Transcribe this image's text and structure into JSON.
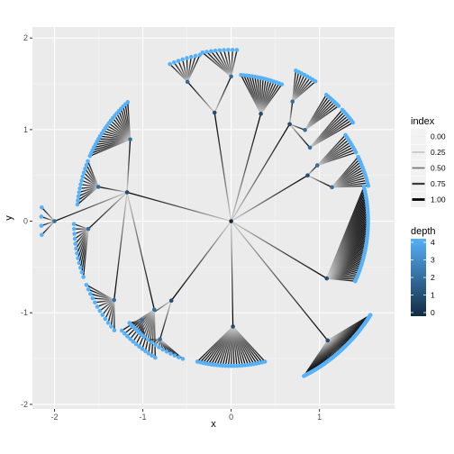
{
  "chart_data": {
    "type": "dendrogram",
    "xlabel": "x",
    "ylabel": "y",
    "xlim": [
      -2.25,
      1.85
    ],
    "ylim": [
      -2.05,
      2.12
    ],
    "x_ticks": [
      -2,
      -1,
      0,
      1
    ],
    "x_tick_labels": [
      "-2",
      "-1",
      "0",
      "1"
    ],
    "y_ticks": [
      -2,
      -1,
      0,
      1,
      2
    ],
    "y_tick_labels": [
      "-2",
      "-1",
      "0",
      "1",
      "2"
    ],
    "grid": true,
    "legend_position": "right",
    "legends": {
      "index": {
        "title": "index",
        "labels": [
          "0.00",
          "0.25",
          "0.50",
          "0.75",
          "1.00"
        ],
        "values": [
          0.0,
          0.25,
          0.5,
          0.75,
          1.0
        ]
      },
      "depth": {
        "title": "depth",
        "labels": [
          "4",
          "3",
          "2",
          "1",
          "0"
        ],
        "values": [
          4,
          3,
          2,
          1,
          0
        ],
        "low_color": "#132b43",
        "high_color": "#56b1f7"
      }
    },
    "root": {
      "x": 0,
      "y": 0,
      "depth": 0
    },
    "branches": [
      {
        "angle_deg": 99,
        "radius": 1.2,
        "depth": 1,
        "children": [
          {
            "angle_deg": 108,
            "radius": 1.6,
            "depth": 2,
            "leaves": {
              "start_deg": 101,
              "end_deg": 112,
              "count": 8,
              "radius": 1.85,
              "depth": 4
            }
          },
          {
            "angle_deg": 90,
            "radius": 1.58,
            "depth": 2,
            "leaves": {
              "start_deg": 88,
              "end_deg": 100,
              "count": 9,
              "radius": 1.87,
              "depth": 4
            }
          }
        ]
      },
      {
        "angle_deg": 74,
        "radius": 1.22,
        "depth": 1,
        "leaves": {
          "start_deg": 69,
          "end_deg": 86,
          "count": 16,
          "radius": 1.6,
          "depth": 4
        }
      },
      {
        "angle_deg": 58,
        "radius": 1.25,
        "depth": 1,
        "children": [
          {
            "angle_deg": 62,
            "radius": 1.48,
            "depth": 2,
            "leaves": {
              "start_deg": 58,
              "end_deg": 66,
              "count": 8,
              "radius": 1.8,
              "depth": 4
            }
          },
          {
            "angle_deg": 50,
            "radius": 1.3,
            "depth": 2,
            "leaves": {
              "start_deg": 46,
              "end_deg": 52,
              "count": 7,
              "radius": 1.75,
              "depth": 4
            }
          },
          {
            "angle_deg": 42,
            "radius": 1.2,
            "depth": 2,
            "leaves": {
              "start_deg": 38,
              "end_deg": 44,
              "count": 7,
              "radius": 1.75,
              "depth": 4
            }
          }
        ]
      },
      {
        "angle_deg": 30,
        "radius": 1.0,
        "depth": 1,
        "children": [
          {
            "angle_deg": 32,
            "radius": 1.15,
            "depth": 2,
            "leaves": {
              "start_deg": 28,
              "end_deg": 36,
              "count": 8,
              "radius": 1.6,
              "depth": 4
            }
          },
          {
            "angle_deg": 18,
            "radius": 1.2,
            "depth": 2,
            "leaves": {
              "start_deg": 14,
              "end_deg": 26,
              "count": 12,
              "radius": 1.6,
              "depth": 4
            }
          }
        ]
      },
      {
        "angle_deg": -30,
        "radius": 1.25,
        "depth": 1,
        "leaves": {
          "start_deg": -25,
          "end_deg": 14,
          "count": 40,
          "radius": 1.55,
          "depth": 4
        }
      },
      {
        "angle_deg": -50,
        "radius": 1.7,
        "depth": 1,
        "leaves": {
          "start_deg": -64,
          "end_deg": -33,
          "count": 55,
          "radius": 1.88,
          "depth": 4
        }
      },
      {
        "angle_deg": -89,
        "radius": 1.15,
        "depth": 1,
        "leaves": {
          "start_deg": -104,
          "end_deg": -76,
          "count": 25,
          "radius": 1.58,
          "depth": 4
        }
      },
      {
        "angle_deg": -128,
        "radius": 1.1,
        "depth": 1,
        "children": [
          {
            "angle_deg": -122,
            "radius": 1.52,
            "depth": 2,
            "leaves": {
              "start_deg": -126,
              "end_deg": -110,
              "count": 10,
              "radius": 1.6,
              "depth": 4
            }
          },
          {
            "angle_deg": -133,
            "radius": 1.48,
            "depth": 2,
            "leaves": {
              "start_deg": -136,
              "end_deg": -128,
              "count": 8,
              "radius": 1.6,
              "depth": 4
            }
          }
        ]
      },
      {
        "angle_deg": 165,
        "radius": 1.22,
        "depth": 1,
        "children": [
          {
            "angle_deg": 180,
            "radius": 2.0,
            "depth": 2,
            "leaves": {
              "start_deg": 176,
              "end_deg": 184,
              "count": 4,
              "radius": 2.15,
              "depth": 4
            }
          },
          {
            "angle_deg": 183,
            "radius": 1.62,
            "depth": 2,
            "leaves": {
              "start_deg": 181,
              "end_deg": 200,
              "count": 12,
              "radius": 1.78,
              "depth": 4
            }
          },
          {
            "angle_deg": 213,
            "radius": 1.58,
            "depth": 2,
            "leaves": {
              "start_deg": 203,
              "end_deg": 222,
              "count": 12,
              "radius": 1.78,
              "depth": 4
            }
          },
          {
            "angle_deg": 166,
            "radius": 1.55,
            "depth": 2,
            "leaves": {
              "start_deg": 158,
              "end_deg": 174,
              "count": 12,
              "radius": 1.75,
              "depth": 4
            }
          },
          {
            "angle_deg": 142,
            "radius": 1.45,
            "depth": 2,
            "leaves": {
              "start_deg": 132,
              "end_deg": 156,
              "count": 22,
              "radius": 1.75,
              "depth": 4
            }
          },
          {
            "angle_deg": 228,
            "radius": 1.3,
            "depth": 2,
            "leaves": {
              "start_deg": 224,
              "end_deg": 240,
              "count": 12,
              "radius": 1.72,
              "depth": 4
            }
          }
        ]
      }
    ]
  }
}
